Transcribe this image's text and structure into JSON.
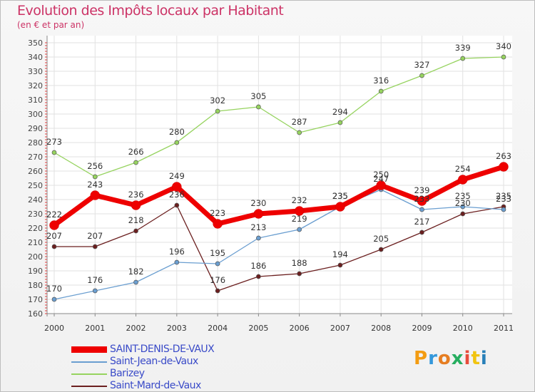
{
  "title": "Evolution des Impôts locaux par Habitant",
  "subtitle": "(en € et par an)",
  "brand": {
    "text": "Proxiti",
    "letter_colors": [
      "#f39c12",
      "#3498db",
      "#e67e22",
      "#27ae60",
      "#e74c3c",
      "#f1c40f",
      "#2980b9"
    ]
  },
  "chart_data": {
    "type": "line",
    "title": "Evolution des Impôts locaux par Habitant",
    "subtitle": "(en € et par an)",
    "xlabel": "",
    "ylabel": "",
    "x": [
      "2000",
      "2001",
      "2002",
      "2003",
      "2004",
      "2005",
      "2006",
      "2007",
      "2008",
      "2009",
      "2010",
      "2011"
    ],
    "ylim": [
      160,
      350
    ],
    "yticks": [
      160,
      170,
      180,
      190,
      200,
      210,
      220,
      230,
      240,
      250,
      260,
      270,
      280,
      290,
      300,
      310,
      320,
      330,
      340,
      350
    ],
    "grid": true,
    "legend_position": "bottom-left",
    "series": [
      {
        "name": "Saint-Mard-de-Vaux",
        "color": "#6b1f1f",
        "values": [
          207,
          207,
          218,
          236,
          176,
          186,
          188,
          194,
          205,
          217,
          230,
          235
        ],
        "labels": [
          "207",
          "207",
          "218",
          "236",
          "176",
          "186",
          "188",
          "194",
          "205",
          "217",
          "230",
          "235"
        ]
      },
      {
        "name": "Saint-Jean-de-Vaux",
        "color": "#6a9ed0",
        "values": [
          170,
          176,
          182,
          196,
          195,
          213,
          219,
          235,
          247,
          233,
          235,
          233
        ],
        "labels": [
          "170",
          "176",
          "182",
          "196",
          "195",
          "213",
          "219",
          "235",
          "247",
          "233",
          "235",
          "233"
        ]
      },
      {
        "name": "Barizey",
        "color": "#96d35f",
        "values": [
          273,
          256,
          266,
          280,
          302,
          305,
          287,
          294,
          316,
          327,
          339,
          340
        ],
        "labels": [
          "273",
          "256",
          "266",
          "280",
          "302",
          "305",
          "287",
          "294",
          "316",
          "327",
          "339",
          "340"
        ]
      },
      {
        "name": "SAINT-DENIS-DE-VAUX",
        "color": "#ee0000",
        "values": [
          222,
          243,
          236,
          249,
          223,
          230,
          232,
          235,
          250,
          239,
          254,
          263
        ],
        "labels": [
          "222",
          "243",
          "236",
          "249",
          "223",
          "230",
          "232",
          "235",
          "250",
          "239",
          "254",
          "263"
        ]
      }
    ],
    "legend": [
      "SAINT-DENIS-DE-VAUX",
      "Saint-Jean-de-Vaux",
      "Barizey",
      "Saint-Mard-de-Vaux"
    ]
  }
}
